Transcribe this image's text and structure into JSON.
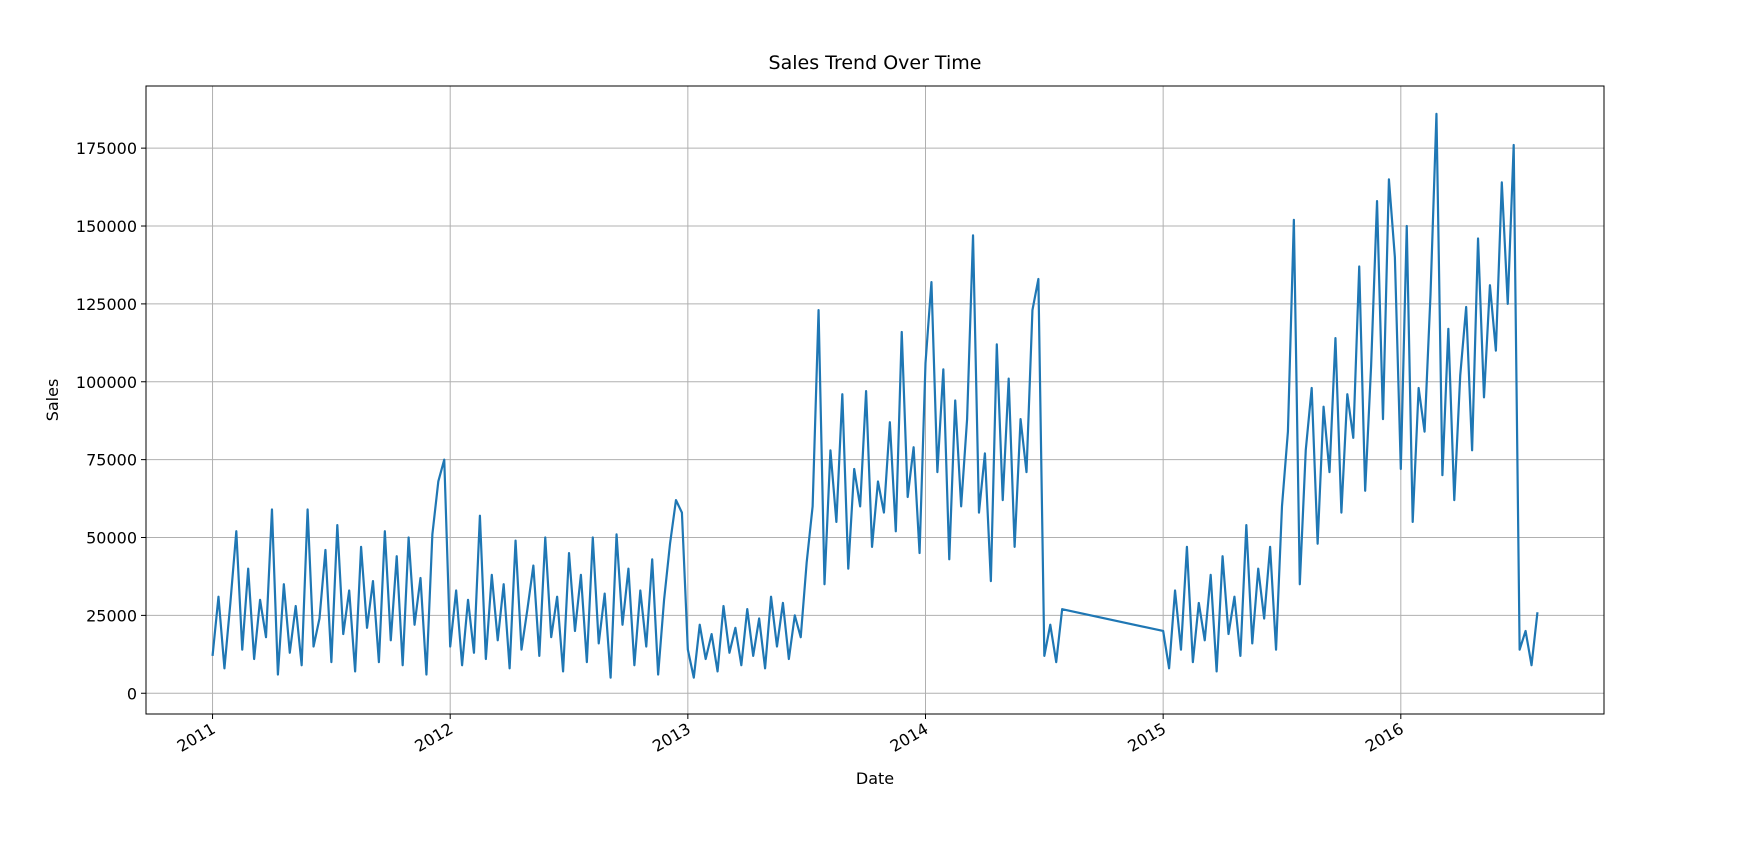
{
  "chart_data": {
    "type": "line",
    "title": "Sales Trend Over Time",
    "x_label": "Date",
    "y_label": "Sales",
    "color": "#1f77b4",
    "grid": true,
    "xlim": [
      2010.72,
      2016.855
    ],
    "xticks": [
      2011,
      2012,
      2013,
      2014,
      2015,
      2016
    ],
    "ylim": [
      -6660,
      194950
    ],
    "yticks": [
      0,
      25000,
      50000,
      75000,
      100000,
      125000,
      150000,
      175000
    ],
    "x": [
      2011,
      2011.025,
      2011.05,
      2011.075,
      2011.1,
      2011.125,
      2011.15,
      2011.175,
      2011.2,
      2011.225,
      2011.25,
      2011.275,
      2011.3,
      2011.325,
      2011.35,
      2011.375,
      2011.4,
      2011.425,
      2011.45,
      2011.475,
      2011.5,
      2011.525,
      2011.55,
      2011.575,
      2011.6,
      2011.625,
      2011.65,
      2011.675,
      2011.7,
      2011.725,
      2011.75,
      2011.775,
      2011.8,
      2011.825,
      2011.85,
      2011.875,
      2011.9,
      2011.925,
      2011.95,
      2011.975,
      2012,
      2012.025,
      2012.05,
      2012.075,
      2012.1,
      2012.125,
      2012.15,
      2012.175,
      2012.2,
      2012.225,
      2012.25,
      2012.275,
      2012.3,
      2012.325,
      2012.35,
      2012.375,
      2012.4,
      2012.425,
      2012.45,
      2012.475,
      2012.5,
      2012.525,
      2012.55,
      2012.575,
      2012.6,
      2012.625,
      2012.65,
      2012.675,
      2012.7,
      2012.725,
      2012.75,
      2012.775,
      2012.8,
      2012.825,
      2012.85,
      2012.875,
      2012.9,
      2012.925,
      2012.95,
      2012.975,
      2013,
      2013.025,
      2013.05,
      2013.075,
      2013.1,
      2013.125,
      2013.15,
      2013.175,
      2013.2,
      2013.225,
      2013.25,
      2013.275,
      2013.3,
      2013.325,
      2013.35,
      2013.375,
      2013.4,
      2013.425,
      2013.45,
      2013.475,
      2013.5,
      2013.525,
      2013.55,
      2013.575,
      2013.6,
      2013.625,
      2013.65,
      2013.675,
      2013.7,
      2013.725,
      2013.75,
      2013.775,
      2013.8,
      2013.825,
      2013.85,
      2013.875,
      2013.9,
      2013.925,
      2013.95,
      2013.975,
      2014,
      2014.025,
      2014.05,
      2014.075,
      2014.1,
      2014.125,
      2014.15,
      2014.175,
      2014.2,
      2014.225,
      2014.25,
      2014.275,
      2014.3,
      2014.325,
      2014.35,
      2014.375,
      2014.4,
      2014.425,
      2014.45,
      2014.475,
      2014.5,
      2014.525,
      2014.55,
      2014.575,
      2015,
      2015.025,
      2015.05,
      2015.075,
      2015.1,
      2015.125,
      2015.15,
      2015.175,
      2015.2,
      2015.225,
      2015.25,
      2015.275,
      2015.3,
      2015.325,
      2015.35,
      2015.375,
      2015.4,
      2015.425,
      2015.45,
      2015.475,
      2015.5,
      2015.525,
      2015.55,
      2015.575,
      2015.6,
      2015.625,
      2015.65,
      2015.675,
      2015.7,
      2015.725,
      2015.75,
      2015.775,
      2015.8,
      2015.825,
      2015.85,
      2015.875,
      2015.9,
      2015.925,
      2015.95,
      2015.975,
      2016,
      2016.025,
      2016.05,
      2016.075,
      2016.1,
      2016.125,
      2016.15,
      2016.175,
      2016.2,
      2016.225,
      2016.25,
      2016.275,
      2016.3,
      2016.325,
      2016.35,
      2016.375,
      2016.4,
      2016.425,
      2016.45,
      2016.475,
      2016.5,
      2016.525,
      2016.55,
      2016.575
    ],
    "values": [
      12000,
      31000,
      8000,
      29000,
      52000,
      14000,
      40000,
      11000,
      30000,
      18000,
      59000,
      6000,
      35000,
      13000,
      28000,
      9000,
      59000,
      15000,
      24000,
      46000,
      10000,
      54000,
      19000,
      33000,
      7000,
      47000,
      21000,
      36000,
      10000,
      52000,
      17000,
      44000,
      9000,
      50000,
      22000,
      37000,
      6000,
      51000,
      68000,
      75000,
      15000,
      33000,
      9000,
      30000,
      13000,
      57000,
      11000,
      38000,
      17000,
      35000,
      8000,
      49000,
      14000,
      27000,
      41000,
      12000,
      50000,
      18000,
      31000,
      7000,
      45000,
      20000,
      38000,
      10000,
      50000,
      16000,
      32000,
      5000,
      51000,
      22000,
      40000,
      9000,
      33000,
      15000,
      43000,
      6000,
      30000,
      48000,
      62000,
      58000,
      14000,
      5000,
      22000,
      11000,
      19000,
      7000,
      28000,
      13000,
      21000,
      9000,
      27000,
      12000,
      24000,
      8000,
      31000,
      15000,
      29000,
      11000,
      25000,
      18000,
      42000,
      60000,
      123000,
      35000,
      78000,
      55000,
      96000,
      40000,
      72000,
      60000,
      97000,
      47000,
      68000,
      58000,
      87000,
      52000,
      116000,
      63000,
      79000,
      45000,
      106000,
      132000,
      71000,
      104000,
      43000,
      94000,
      60000,
      88000,
      147000,
      58000,
      77000,
      36000,
      112000,
      62000,
      101000,
      47000,
      88000,
      71000,
      123000,
      133000,
      12000,
      22000,
      10000,
      27000,
      20000,
      8000,
      33000,
      14000,
      47000,
      10000,
      29000,
      17000,
      38000,
      7000,
      44000,
      19000,
      31000,
      12000,
      54000,
      16000,
      40000,
      24000,
      47000,
      14000,
      60000,
      84000,
      152000,
      35000,
      78000,
      98000,
      48000,
      92000,
      71000,
      114000,
      58000,
      96000,
      82000,
      137000,
      65000,
      105000,
      158000,
      88000,
      165000,
      140000,
      72000,
      150000,
      55000,
      98000,
      84000,
      128000,
      186000,
      70000,
      117000,
      62000,
      102000,
      124000,
      78000,
      146000,
      95000,
      131000,
      110000,
      164000,
      125000,
      176000,
      14000,
      20000,
      9000,
      26000
    ]
  }
}
